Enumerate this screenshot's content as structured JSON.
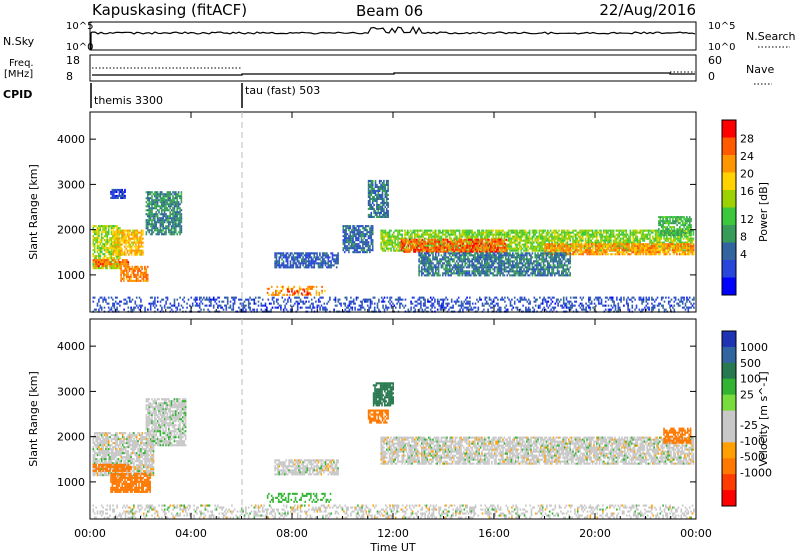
{
  "header": {
    "station": "Kapuskasing (fitACF)",
    "beam": "Beam 06",
    "date": "22/Aug/2016"
  },
  "nsky_panel": {
    "left_label": "N.Sky",
    "right_label": "N.Search",
    "ticks": [
      "10^5",
      "10^0"
    ],
    "right_ticks": [
      "10^5",
      "10^0"
    ]
  },
  "freq_panel": {
    "left_label_1": "Freq.",
    "left_label_2": "[MHz]",
    "left_ticks": [
      "18",
      "8"
    ],
    "right_label": "Nave",
    "right_ticks": [
      "60",
      "0"
    ]
  },
  "cpid_panel": {
    "label": "CPID",
    "modes": [
      "themis 3300",
      "tau (fast) 503"
    ]
  },
  "power_colorbar": {
    "title": "Power [dB]",
    "ticks": [
      "28",
      "24",
      "20",
      "16",
      "12",
      "8",
      "4"
    ],
    "colors": [
      "#ff0000",
      "#ff5a00",
      "#ff9600",
      "#ffd200",
      "#9bd200",
      "#3cc83c",
      "#379b5a",
      "#3264a0",
      "#2846dc",
      "#0000ff"
    ]
  },
  "velocity_colorbar": {
    "title": "Velocity [m s^-1]",
    "ticks": [
      "1000",
      "500",
      "100",
      "25",
      "-25",
      "-100",
      "-500",
      "-1000"
    ],
    "colors": [
      "#1e32b4",
      "#3264a0",
      "#287850",
      "#32b432",
      "#78dc3c",
      "#c8c8c8",
      "#c8c8c8",
      "#ffa000",
      "#ff7800",
      "#ff3c00",
      "#ff0000"
    ]
  },
  "chart_data": [
    {
      "type": "heatmap",
      "name": "Power",
      "ylabel": "Slant Range [km]",
      "xlabel": "Time UT",
      "yticks": [
        "4000",
        "3000",
        "2000",
        "1000"
      ],
      "xticks": [
        "00:00",
        "04:00",
        "08:00",
        "12:00",
        "16:00",
        "20:00",
        "00:00"
      ],
      "xlim_hours": [
        0,
        24
      ],
      "ylim_km": [
        180,
        4600
      ],
      "mode_change_hour": 6,
      "scatter_regions": [
        {
          "t0": 0.1,
          "t1": 1.2,
          "r0": 1150,
          "r1": 2100,
          "value_db": 18
        },
        {
          "t0": 0.9,
          "t1": 2.1,
          "r0": 1450,
          "r1": 2000,
          "value_db": 22
        },
        {
          "t0": 0.1,
          "t1": 1.5,
          "r0": 1200,
          "r1": 1350,
          "value_db": 26
        },
        {
          "t0": 1.2,
          "t1": 2.3,
          "r0": 850,
          "r1": 1200,
          "value_db": 25
        },
        {
          "t0": 2.2,
          "t1": 3.6,
          "r0": 1900,
          "r1": 2850,
          "value_db": 11
        },
        {
          "t0": 0.8,
          "t1": 1.4,
          "r0": 2700,
          "r1": 2900,
          "value_db": 6
        },
        {
          "t0": 7.3,
          "t1": 9.8,
          "r0": 1150,
          "r1": 1500,
          "value_db": 8
        },
        {
          "t0": 7.0,
          "t1": 9.3,
          "r0": 550,
          "r1": 760,
          "value_db": 24
        },
        {
          "t0": 7.8,
          "t1": 8.7,
          "r0": 580,
          "r1": 700,
          "value_db": 28
        },
        {
          "t0": 10.0,
          "t1": 11.2,
          "r0": 1500,
          "r1": 2100,
          "value_db": 9
        },
        {
          "t0": 11.0,
          "t1": 11.8,
          "r0": 2300,
          "r1": 3100,
          "value_db": 10
        },
        {
          "t0": 11.5,
          "t1": 23.9,
          "r0": 1550,
          "r1": 2000,
          "value_db": 17
        },
        {
          "t0": 12.3,
          "t1": 16.5,
          "r0": 1500,
          "r1": 1800,
          "value_db": 27
        },
        {
          "t0": 18.0,
          "t1": 23.9,
          "r0": 1450,
          "r1": 1700,
          "value_db": 24
        },
        {
          "t0": 13.0,
          "t1": 19.0,
          "r0": 1000,
          "r1": 1500,
          "value_db": 10
        },
        {
          "t0": 22.5,
          "t1": 23.8,
          "r0": 1900,
          "r1": 2300,
          "value_db": 14
        },
        {
          "t0": 0.1,
          "t1": 23.9,
          "r0": 200,
          "r1": 520,
          "value_db": 7
        }
      ]
    },
    {
      "type": "heatmap",
      "name": "Velocity",
      "ylabel": "Slant Range [km]",
      "xlabel": "Time UT",
      "yticks": [
        "4000",
        "3000",
        "2000",
        "1000"
      ],
      "xticks": [
        "00:00",
        "04:00",
        "08:00",
        "12:00",
        "16:00",
        "20:00",
        "00:00"
      ],
      "xlim_hours": [
        0,
        24
      ],
      "ylim_km": [
        180,
        4600
      ],
      "mode_change_hour": 6,
      "scatter_regions": [
        {
          "t0": 0.1,
          "t1": 2.5,
          "r0": 1150,
          "r1": 2100,
          "value_ms": 0
        },
        {
          "t0": 2.2,
          "t1": 3.8,
          "r0": 1800,
          "r1": 2850,
          "value_ms": 5
        },
        {
          "t0": 0.1,
          "t1": 1.6,
          "r0": 1250,
          "r1": 1400,
          "value_ms": -150
        },
        {
          "t0": 0.8,
          "t1": 2.4,
          "r0": 800,
          "r1": 1200,
          "value_ms": -250
        },
        {
          "t0": 7.0,
          "t1": 9.5,
          "r0": 550,
          "r1": 760,
          "value_ms": 60
        },
        {
          "t0": 7.3,
          "t1": 9.8,
          "r0": 1150,
          "r1": 1500,
          "value_ms": 0
        },
        {
          "t0": 11.0,
          "t1": 11.8,
          "r0": 2300,
          "r1": 2600,
          "value_ms": -150
        },
        {
          "t0": 11.2,
          "t1": 12.0,
          "r0": 2700,
          "r1": 3200,
          "value_ms": 150
        },
        {
          "t0": 11.5,
          "t1": 23.9,
          "r0": 1400,
          "r1": 2000,
          "value_ms": 0
        },
        {
          "t0": 22.7,
          "t1": 23.8,
          "r0": 1850,
          "r1": 2200,
          "value_ms": -150
        },
        {
          "t0": 0.1,
          "t1": 23.9,
          "r0": 200,
          "r1": 500,
          "value_ms": 0
        }
      ]
    }
  ]
}
